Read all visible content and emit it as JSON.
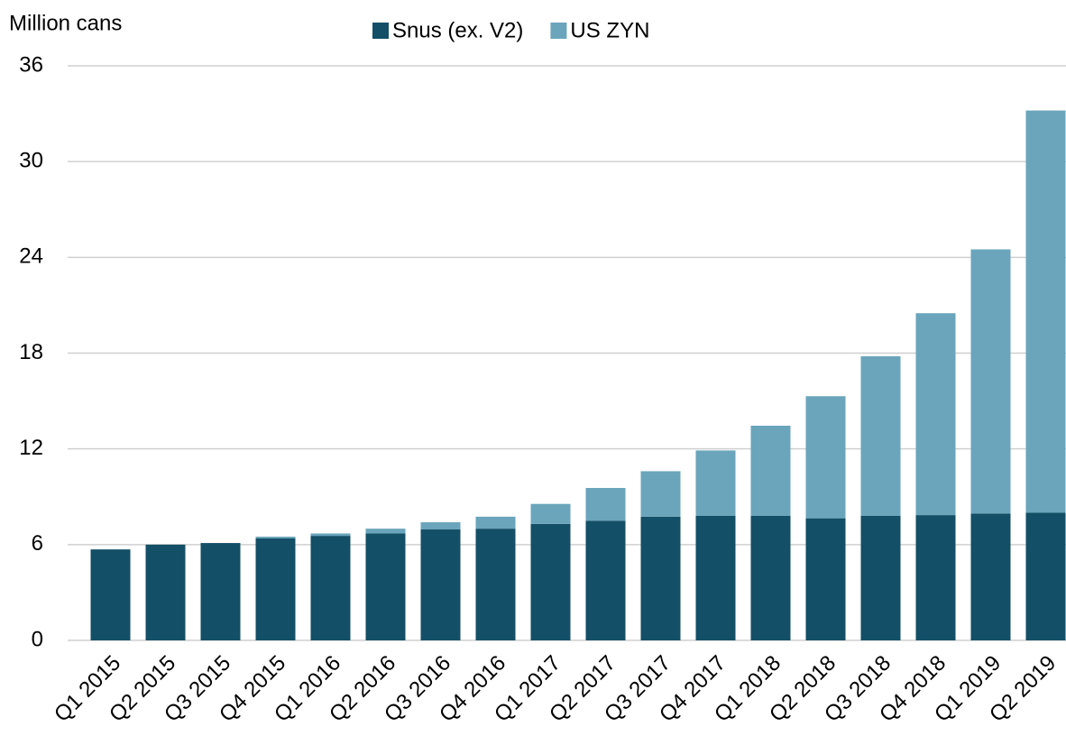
{
  "chart_data": {
    "type": "stacked_bar",
    "y_axis_label": "Million cans",
    "categories": [
      "Q1 2015",
      "Q2 2015",
      "Q3 2015",
      "Q4 2015",
      "Q1 2016",
      "Q2 2016",
      "Q3 2016",
      "Q4 2016",
      "Q1 2017",
      "Q2 2017",
      "Q3 2017",
      "Q4 2017",
      "Q1 2018",
      "Q2 2018",
      "Q3 2018",
      "Q4 2018",
      "Q1 2019",
      "Q2 2019"
    ],
    "series": [
      {
        "name": "Snus (ex. V2)",
        "color": "#134f66",
        "values": [
          5.7,
          6.0,
          6.1,
          6.4,
          6.55,
          6.7,
          6.95,
          7.0,
          7.3,
          7.5,
          7.75,
          7.8,
          7.8,
          7.65,
          7.8,
          7.85,
          7.95,
          8.0
        ]
      },
      {
        "name": "US ZYN",
        "color": "#6aa5bb",
        "values": [
          0,
          0,
          0,
          0.1,
          0.15,
          0.3,
          0.45,
          0.75,
          1.25,
          2.05,
          2.85,
          4.1,
          5.65,
          7.65,
          10.0,
          12.65,
          16.55,
          25.2
        ]
      }
    ],
    "ylim": [
      0,
      36
    ],
    "yticks": [
      0,
      6,
      12,
      18,
      24,
      30,
      36
    ],
    "grid": true,
    "legend": "top"
  }
}
